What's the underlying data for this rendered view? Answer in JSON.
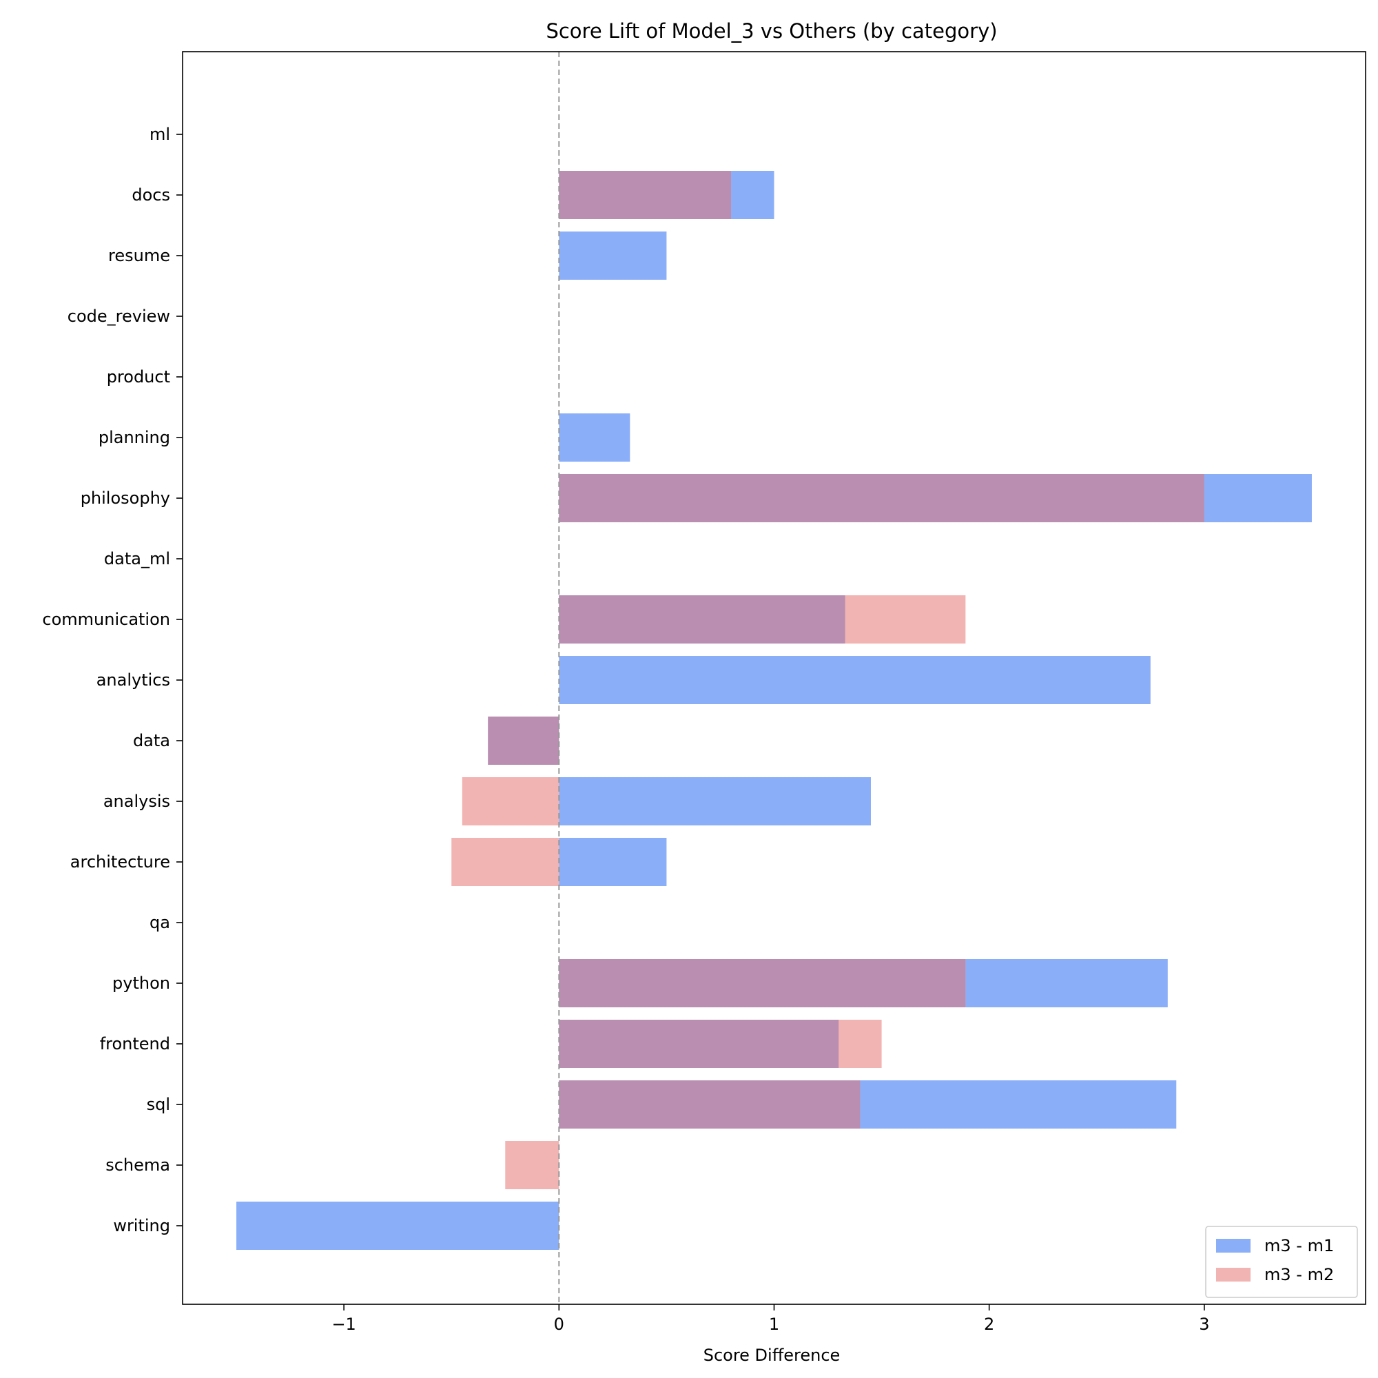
{
  "chart_data": {
    "type": "bar",
    "orientation": "horizontal",
    "title": "Score Lift of Model_3 vs Others (by category)",
    "xlabel": "Score Difference",
    "ylabel": "",
    "xlim": [
      -1.75,
      3.75
    ],
    "xticks": [
      -1,
      0,
      1,
      2,
      3
    ],
    "xtick_labels": [
      "−1",
      "0",
      "1",
      "2",
      "3"
    ],
    "zero_line": "dashed gray at 0",
    "grid": false,
    "legend_position": "lower right",
    "categories": [
      "ml",
      "docs",
      "resume",
      "code_review",
      "product",
      "planning",
      "philosophy",
      "data_ml",
      "communication",
      "analytics",
      "data",
      "analysis",
      "architecture",
      "qa",
      "python",
      "frontend",
      "sql",
      "schema",
      "writing"
    ],
    "series": [
      {
        "name": "m3 - m1",
        "color": "#8aaef8",
        "values": [
          0,
          1.0,
          0.5,
          0,
          0,
          0.33,
          3.5,
          0,
          1.33,
          2.75,
          -0.33,
          1.45,
          0.5,
          0,
          2.83,
          1.3,
          2.87,
          0,
          -1.5
        ]
      },
      {
        "name": "m3 - m2",
        "color": "#f2b3b3",
        "values": [
          0,
          0.8,
          0,
          0,
          0,
          0,
          3.0,
          0,
          1.89,
          0,
          -0.33,
          -0.45,
          -0.5,
          0,
          1.89,
          1.5,
          1.4,
          -0.25,
          0
        ]
      }
    ],
    "overlap_color": "#b98eb1"
  }
}
